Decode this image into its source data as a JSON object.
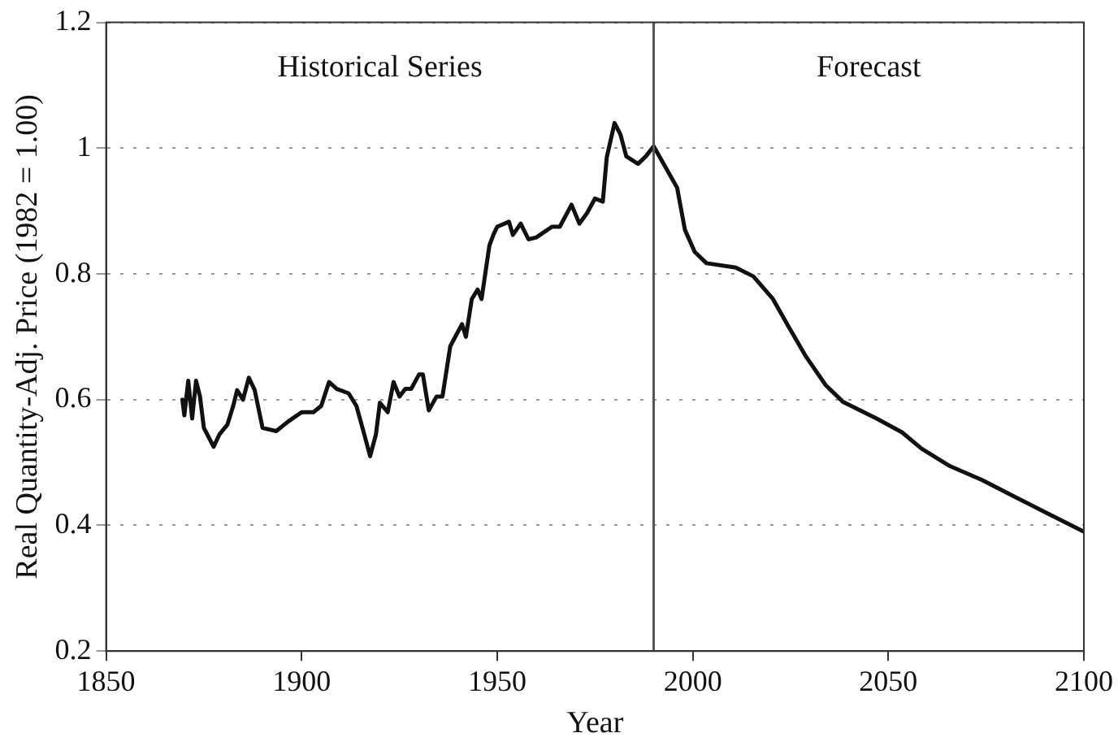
{
  "chart_data": {
    "type": "line",
    "xlabel": "Year",
    "ylabel": "Real Quantity-Adj. Price (1982 = 1.00)",
    "xlim": [
      1850,
      2100
    ],
    "xticks": [
      1850,
      1900,
      1950,
      2000,
      2050,
      2100
    ],
    "ylim": [
      0.2,
      1.2
    ],
    "yticks": [
      0.2,
      0.4,
      0.6,
      0.8,
      1,
      1.2
    ],
    "grid": "y",
    "legend": false,
    "marker": "none",
    "line_style": "solid",
    "ref_lines": [
      {
        "axis": "x",
        "value": 1990,
        "color": "#555555"
      }
    ],
    "annotations": [
      "Historical Series",
      "Forecast"
    ],
    "series": [
      {
        "color": "#111111",
        "x": [
          1869.5,
          1870,
          1871,
          1872,
          1873,
          1874,
          1875,
          1877.5,
          1879,
          1881,
          1882.5,
          1883.5,
          1885,
          1886.5,
          1888,
          1890,
          1893.5,
          1896.5,
          1900,
          1903,
          1905,
          1907,
          1909,
          1912,
          1914,
          1916,
          1917.5,
          1919,
          1920,
          1922,
          1923.5,
          1925,
          1926.5,
          1928,
          1930,
          1931,
          1932.5,
          1934.5,
          1936,
          1938,
          1941,
          1942,
          1943.5,
          1945,
          1946,
          1948,
          1949,
          1950,
          1953,
          1954,
          1956,
          1958,
          1960,
          1964,
          1966,
          1969,
          1971,
          1973,
          1975,
          1977,
          1978,
          1980,
          1981.5,
          1983,
          1986,
          1988,
          1990,
          1993,
          1996,
          1998,
          2000.5,
          2003.5,
          2011,
          2015.5,
          2020.5,
          2024.5,
          2029,
          2034,
          2038.5,
          2047,
          2053.5,
          2058.5,
          2065.5,
          2074,
          2082.5,
          2091,
          2100
        ],
        "values": [
          0.6,
          0.575,
          0.63,
          0.57,
          0.63,
          0.605,
          0.555,
          0.525,
          0.545,
          0.56,
          0.59,
          0.615,
          0.6,
          0.635,
          0.615,
          0.555,
          0.55,
          0.565,
          0.58,
          0.58,
          0.59,
          0.628,
          0.617,
          0.61,
          0.59,
          0.545,
          0.51,
          0.545,
          0.595,
          0.58,
          0.628,
          0.605,
          0.617,
          0.617,
          0.64,
          0.64,
          0.583,
          0.605,
          0.605,
          0.685,
          0.72,
          0.7,
          0.76,
          0.775,
          0.76,
          0.845,
          0.862,
          0.875,
          0.883,
          0.862,
          0.88,
          0.855,
          0.858,
          0.875,
          0.875,
          0.91,
          0.88,
          0.897,
          0.92,
          0.915,
          0.985,
          1.04,
          1.022,
          0.987,
          0.975,
          0.987,
          1.003,
          0.97,
          0.937,
          0.87,
          0.835,
          0.817,
          0.81,
          0.796,
          0.76,
          0.716,
          0.668,
          0.623,
          0.596,
          0.57,
          0.548,
          0.522,
          0.495,
          0.472,
          0.445,
          0.418,
          0.39
        ]
      }
    ]
  }
}
